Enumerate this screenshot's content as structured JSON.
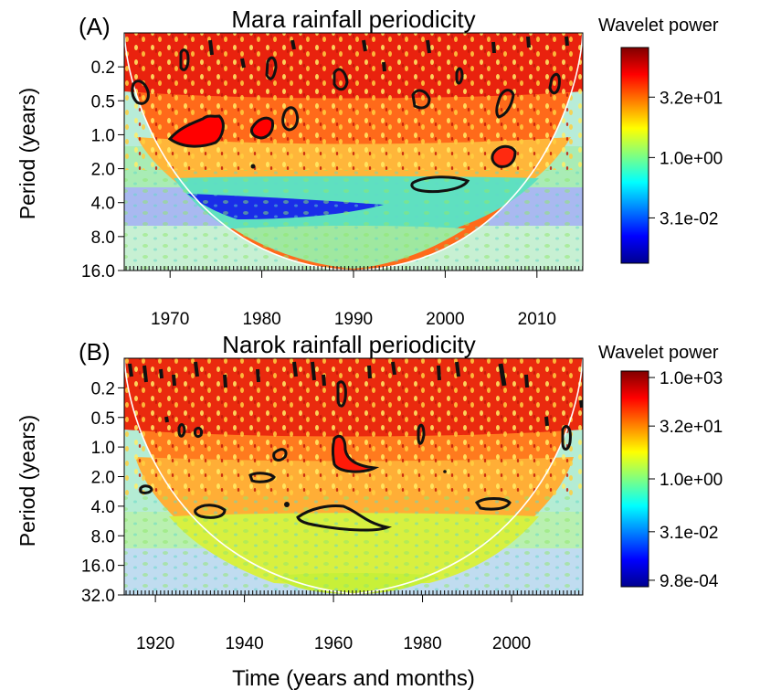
{
  "figure": {
    "common_xlabel": "Time (years and months)"
  },
  "chart_data": [
    {
      "type": "heatmap",
      "panel_label": "(A)",
      "title": "Mara rainfall periodicity",
      "xlabel": "",
      "ylabel": "Period (years)",
      "xlim": [
        1965,
        2015
      ],
      "x_ticks": [
        1970,
        1980,
        1990,
        2000,
        2010
      ],
      "y_scale": "log2-reversed",
      "ylim": [
        0.125,
        16
      ],
      "y_ticks": [
        {
          "value": 0.25,
          "label": "0.2"
        },
        {
          "value": 0.5,
          "label": "0.5"
        },
        {
          "value": 1,
          "label": "1.0"
        },
        {
          "value": 2,
          "label": "2.0"
        },
        {
          "value": 4,
          "label": "4.0"
        },
        {
          "value": 8,
          "label": "8.0"
        },
        {
          "value": 16,
          "label": "16.0"
        }
      ],
      "colorbar": {
        "title": "Wavelet power",
        "ticks": [
          "3.2e+01",
          "1.0e+00",
          "3.1e-02"
        ],
        "tick_positions": [
          0.77,
          0.49,
          0.21
        ]
      },
      "significance_contours": [
        {
          "x": 1973.5,
          "period": 1.2
        },
        {
          "x": 1981.5,
          "period": 1.1
        },
        {
          "x": 1983.5,
          "period": 0.85
        },
        {
          "x": 1966.5,
          "period": 0.48
        },
        {
          "x": 1977.5,
          "period": 0.32
        },
        {
          "x": 1988.5,
          "period": 0.33
        },
        {
          "x": 1998.0,
          "period": 0.55
        },
        {
          "x": 2003.0,
          "period": 0.3
        },
        {
          "x": 2006.7,
          "period": 0.55
        },
        {
          "x": 2011.0,
          "period": 0.42
        },
        {
          "x": 2006.5,
          "period": 1.85
        },
        {
          "x": 1999.5,
          "period": 3.2
        }
      ],
      "cone_of_influence": true
    },
    {
      "type": "heatmap",
      "panel_label": "(B)",
      "title": "Narok rainfall periodicity",
      "xlabel": "",
      "ylabel": "Period (years)",
      "xlim": [
        1913,
        2016
      ],
      "x_ticks": [
        1920,
        1940,
        1960,
        1980,
        2000
      ],
      "y_scale": "log2-reversed",
      "ylim": [
        0.125,
        32
      ],
      "y_ticks": [
        {
          "value": 0.25,
          "label": "0.2"
        },
        {
          "value": 0.5,
          "label": "0.5"
        },
        {
          "value": 1,
          "label": "1.0"
        },
        {
          "value": 2,
          "label": "2.0"
        },
        {
          "value": 4,
          "label": "4.0"
        },
        {
          "value": 8,
          "label": "8.0"
        },
        {
          "value": 16,
          "label": "16.0"
        },
        {
          "value": 32,
          "label": "32.0"
        }
      ],
      "colorbar": {
        "title": "Wavelet power",
        "ticks": [
          "1.0e+03",
          "3.2e+01",
          "1.0e+00",
          "3.1e-02",
          "9.8e-04"
        ],
        "tick_positions": [
          0.97,
          0.745,
          0.5,
          0.255,
          0.03
        ]
      },
      "significance_contours": [
        {
          "x": 1963.5,
          "period": 5.9
        },
        {
          "x": 1932.0,
          "period": 5.0
        },
        {
          "x": 2001.0,
          "period": 4.3
        },
        {
          "x": 1917.0,
          "period": 3.3
        },
        {
          "x": 1943.5,
          "period": 2.5
        },
        {
          "x": 1965.5,
          "period": 1.4
        },
        {
          "x": 1969.0,
          "period": 2.0
        },
        {
          "x": 1953.5,
          "period": 0.8
        },
        {
          "x": 1961.0,
          "period": 0.55
        },
        {
          "x": 2012.0,
          "period": 1.1
        },
        {
          "x": 1989.0,
          "period": 0.9
        },
        {
          "x": 1935.5,
          "period": 0.9
        },
        {
          "x": 1926.0,
          "period": 0.85
        }
      ],
      "cone_of_influence": true
    }
  ]
}
